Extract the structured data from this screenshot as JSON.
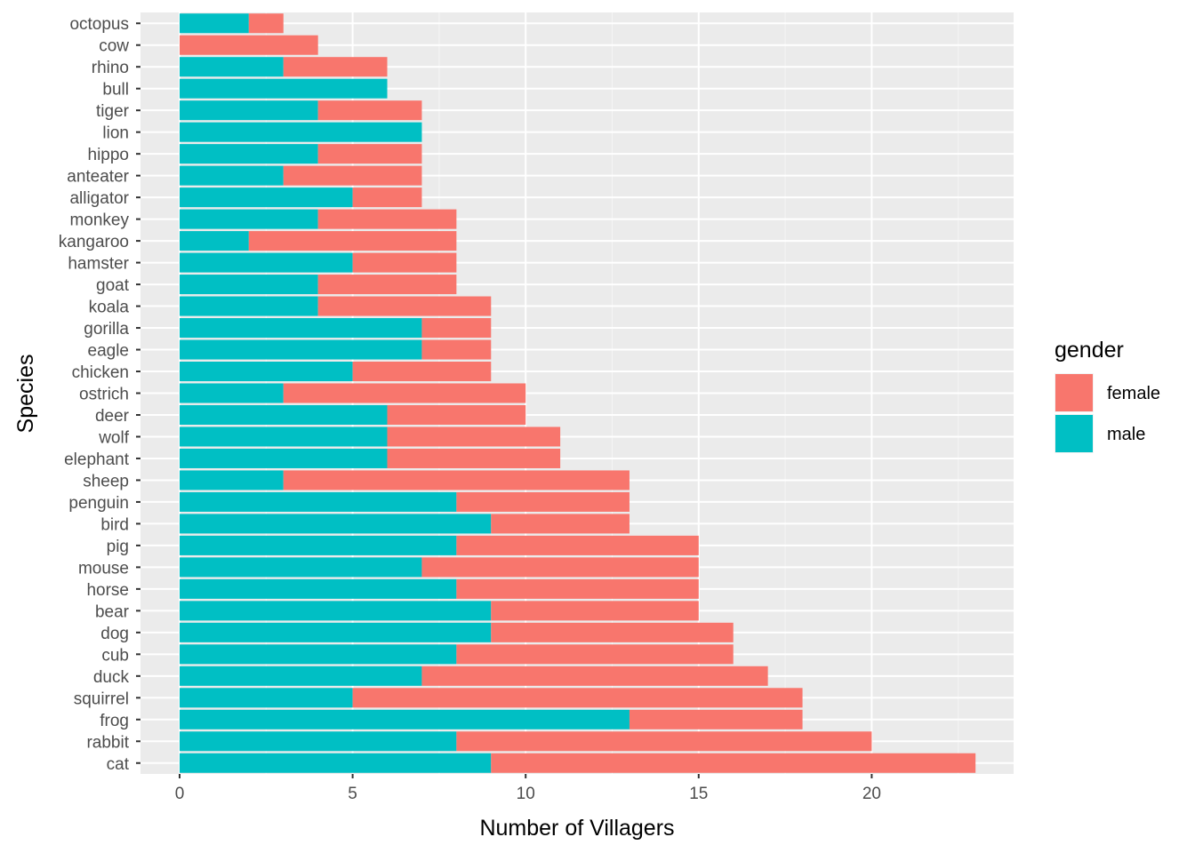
{
  "chart_data": {
    "type": "bar",
    "orientation": "horizontal",
    "stacked": true,
    "title": "",
    "xlabel": "Number of Villagers",
    "ylabel": "Species",
    "xlim": [
      0,
      24
    ],
    "xticks": [
      0,
      5,
      10,
      15,
      20
    ],
    "grid": true,
    "legend": {
      "title": "gender",
      "placement": "right"
    },
    "categories": [
      "octopus",
      "cow",
      "rhino",
      "bull",
      "tiger",
      "lion",
      "hippo",
      "anteater",
      "alligator",
      "monkey",
      "kangaroo",
      "hamster",
      "goat",
      "koala",
      "gorilla",
      "eagle",
      "chicken",
      "ostrich",
      "deer",
      "wolf",
      "elephant",
      "sheep",
      "penguin",
      "bird",
      "pig",
      "mouse",
      "horse",
      "bear",
      "dog",
      "cub",
      "duck",
      "squirrel",
      "frog",
      "rabbit",
      "cat"
    ],
    "series": [
      {
        "name": "male",
        "color": "#00BFC4",
        "values": [
          2,
          0,
          3,
          6,
          4,
          7,
          4,
          3,
          5,
          4,
          2,
          5,
          4,
          4,
          7,
          7,
          5,
          3,
          6,
          6,
          6,
          3,
          8,
          9,
          8,
          7,
          8,
          9,
          9,
          8,
          7,
          5,
          13,
          8,
          9
        ]
      },
      {
        "name": "female",
        "color": "#F8766D",
        "values": [
          1,
          4,
          3,
          0,
          3,
          0,
          3,
          4,
          2,
          4,
          6,
          3,
          4,
          5,
          2,
          2,
          4,
          7,
          4,
          5,
          5,
          10,
          5,
          4,
          7,
          8,
          7,
          6,
          7,
          8,
          10,
          13,
          5,
          12,
          14
        ]
      }
    ],
    "legend_order": [
      "female",
      "male"
    ],
    "panel_color": "#EBEBEB"
  }
}
